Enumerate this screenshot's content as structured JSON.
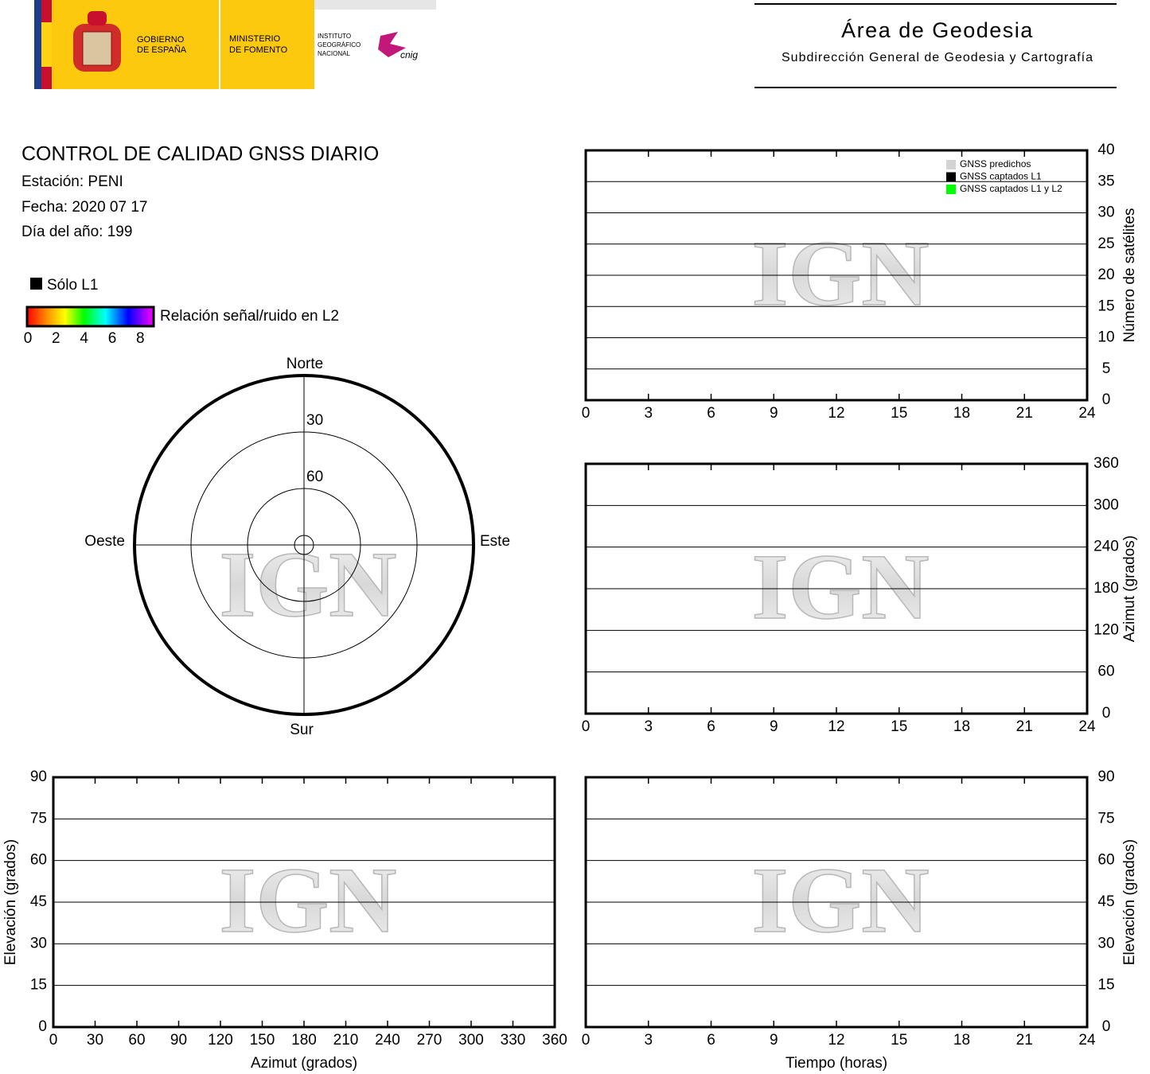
{
  "header": {
    "gov_line1": "GOBIERNO",
    "gov_line2": "DE ESPAÑA",
    "min_line1": "MINISTERIO",
    "min_line2": "DE FOMENTO",
    "ign_lines": [
      "INSTITUTO",
      "GEOGRÁFICO",
      "NACIONAL"
    ],
    "cnig": "cnig",
    "area": "Área de Geodesia",
    "subarea": "Subdirección General de Geodesia y Cartografía"
  },
  "report": {
    "title": "CONTROL DE CALIDAD GNSS DIARIO",
    "station": "Estación: PENI",
    "date": "Fecha: 2020 07 17",
    "doy": "Día del año: 199",
    "solo_l1": "Sólo L1",
    "snr_label": "Relación señal/ruido en L2",
    "snr_range": [
      0,
      9
    ],
    "snr_ticks": [
      0,
      2,
      4,
      6,
      8
    ]
  },
  "watermark": "IGN",
  "chart_data": [
    {
      "type": "line",
      "x": [],
      "series": [
        {
          "name": "GNSS predichos",
          "color": "#d3d3d3",
          "values": []
        },
        {
          "name": "GNSS captados L1",
          "color": "#000000",
          "values": []
        },
        {
          "name": "GNSS captados L1 y L2",
          "color": "#00ff00",
          "values": []
        }
      ],
      "xlim": [
        0,
        24
      ],
      "xticks": [
        0,
        3,
        6,
        9,
        12,
        15,
        18,
        21,
        24
      ],
      "ylim": [
        0,
        40
      ],
      "yticks": [
        0,
        5,
        10,
        15,
        20,
        25,
        30,
        35,
        40
      ],
      "y_label": "Número de satélites",
      "yaxis_side": "right",
      "grid": true,
      "legend": "upper right"
    },
    {
      "type": "line",
      "x": [],
      "series": [],
      "xlim": [
        0,
        24
      ],
      "xticks": [
        0,
        3,
        6,
        9,
        12,
        15,
        18,
        21,
        24
      ],
      "ylim": [
        0,
        360
      ],
      "yticks": [
        0,
        60,
        120,
        180,
        240,
        300,
        360
      ],
      "y_label": "Azimut (grados)",
      "yaxis_side": "right",
      "grid": true
    },
    {
      "type": "polar",
      "north": "Norte",
      "south": "Sur",
      "east": "Este",
      "west": "Oeste",
      "rlim": [
        0,
        90
      ],
      "rticks": [
        30,
        60
      ],
      "series": []
    },
    {
      "type": "scatter",
      "x": [],
      "series": [],
      "xlim": [
        0,
        360
      ],
      "xticks": [
        0,
        30,
        60,
        90,
        120,
        150,
        180,
        210,
        240,
        270,
        300,
        330,
        360
      ],
      "ylim": [
        0,
        90
      ],
      "yticks": [
        0,
        15,
        30,
        45,
        60,
        75,
        90
      ],
      "x_label": "Azimut (grados)",
      "y_label": "Elevación (grados)",
      "yaxis_side": "left",
      "grid": true
    },
    {
      "type": "line",
      "x": [],
      "series": [],
      "xlim": [
        0,
        24
      ],
      "xticks": [
        0,
        3,
        6,
        9,
        12,
        15,
        18,
        21,
        24
      ],
      "ylim": [
        0,
        90
      ],
      "yticks": [
        0,
        15,
        30,
        45,
        60,
        75,
        90
      ],
      "x_label": "Tiempo (horas)",
      "y_label": "Elevación (grados)",
      "yaxis_side": "right",
      "grid": true
    }
  ]
}
